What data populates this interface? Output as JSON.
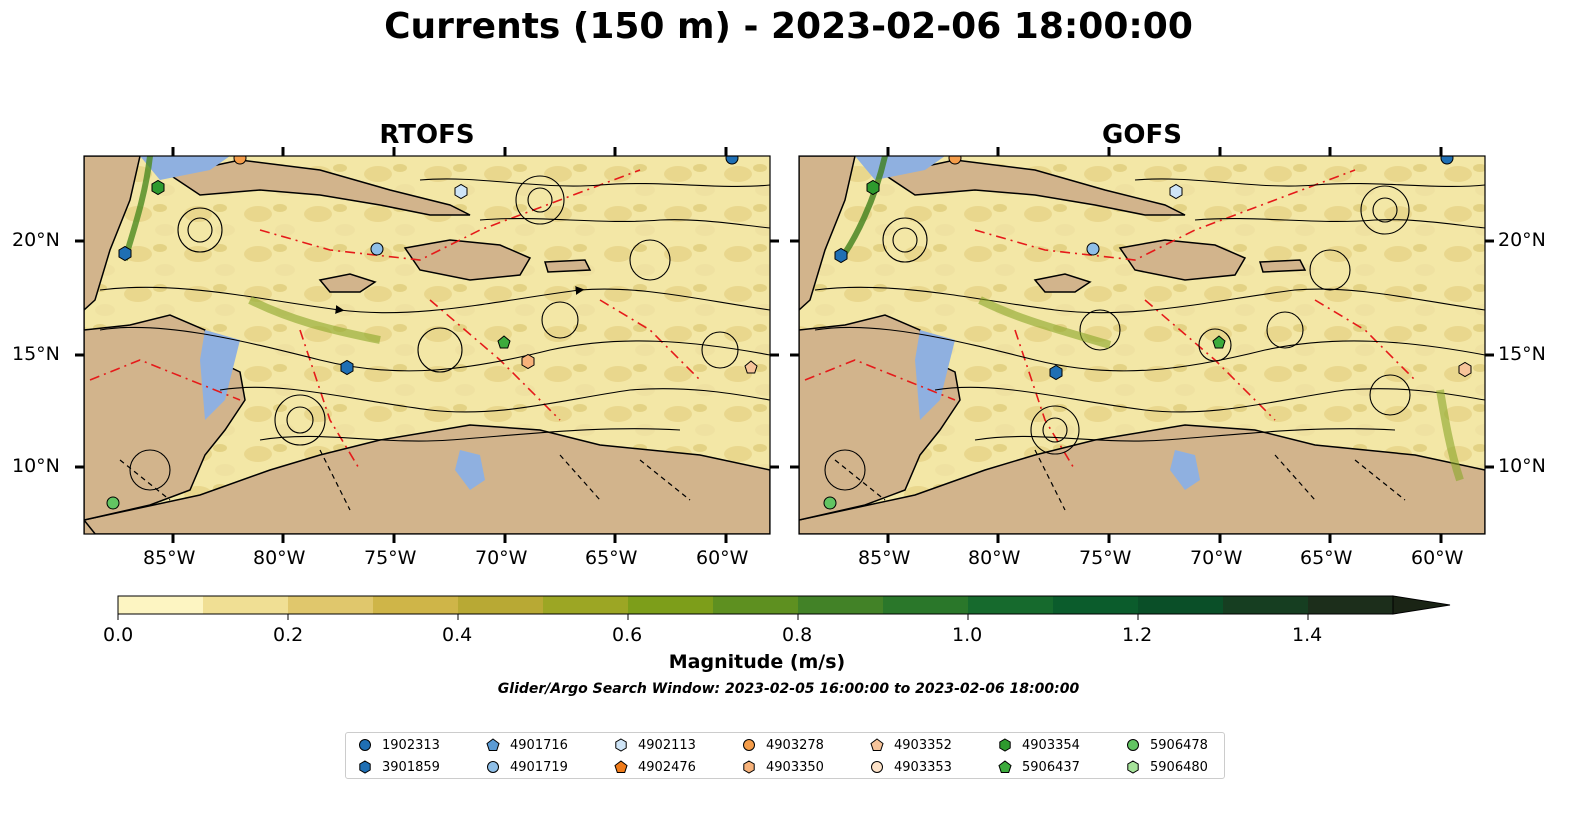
{
  "title": "Currents (150 m) - 2023-02-06 18:00:00",
  "panels": [
    {
      "id": "rtofs",
      "title": "RTOFS"
    },
    {
      "id": "gofs",
      "title": "GOFS"
    }
  ],
  "axes": {
    "lon_ticks": [
      "85°W",
      "80°W",
      "75°W",
      "70°W",
      "65°W",
      "60°W"
    ],
    "lat_ticks": [
      "20°N",
      "15°N",
      "10°N"
    ]
  },
  "colorbar": {
    "label": "Magnitude (m/s)",
    "ticks": [
      "0.0",
      "0.2",
      "0.4",
      "0.6",
      "0.8",
      "1.0",
      "1.2",
      "1.4"
    ],
    "range": [
      0.0,
      1.5
    ],
    "extend": "max",
    "colors": [
      "#fdf5c2",
      "#f0df94",
      "#e0c76c",
      "#cfb548",
      "#b8a934",
      "#9ca624",
      "#7d9e1a",
      "#5e9020",
      "#428227",
      "#2a772a",
      "#166a2d",
      "#0b5c2c",
      "#0a4f28",
      "#163e21",
      "#1c2e1b",
      "#1a2415"
    ]
  },
  "search_window": "Glider/Argo Search Window: 2023-02-05 16:00:00 to 2023-02-06 18:00:00",
  "legend": [
    {
      "id": "1902313",
      "color": "#1f6fb4",
      "marker": "circle"
    },
    {
      "id": "3901859",
      "color": "#1f6fb4",
      "marker": "hexagon"
    },
    {
      "id": "4901716",
      "color": "#5b9bd5",
      "marker": "pentagon"
    },
    {
      "id": "4901719",
      "color": "#8fbfe8",
      "marker": "circle"
    },
    {
      "id": "4902113",
      "color": "#cfe5f7",
      "marker": "hexagon"
    },
    {
      "id": "4902476",
      "color": "#ef7b1a",
      "marker": "pentagon"
    },
    {
      "id": "4903278",
      "color": "#f59d4a",
      "marker": "circle"
    },
    {
      "id": "4903350",
      "color": "#f7b27a",
      "marker": "hexagon"
    },
    {
      "id": "4903352",
      "color": "#f7c49a",
      "marker": "pentagon"
    },
    {
      "id": "4903353",
      "color": "#fde2c8",
      "marker": "circle"
    },
    {
      "id": "4903354",
      "color": "#2e9a2e",
      "marker": "hexagon"
    },
    {
      "id": "5906437",
      "color": "#3cab3c",
      "marker": "pentagon"
    },
    {
      "id": "5906478",
      "color": "#62c462",
      "marker": "circle"
    },
    {
      "id": "5906480",
      "color": "#a6e39a",
      "marker": "hexagon"
    }
  ]
}
